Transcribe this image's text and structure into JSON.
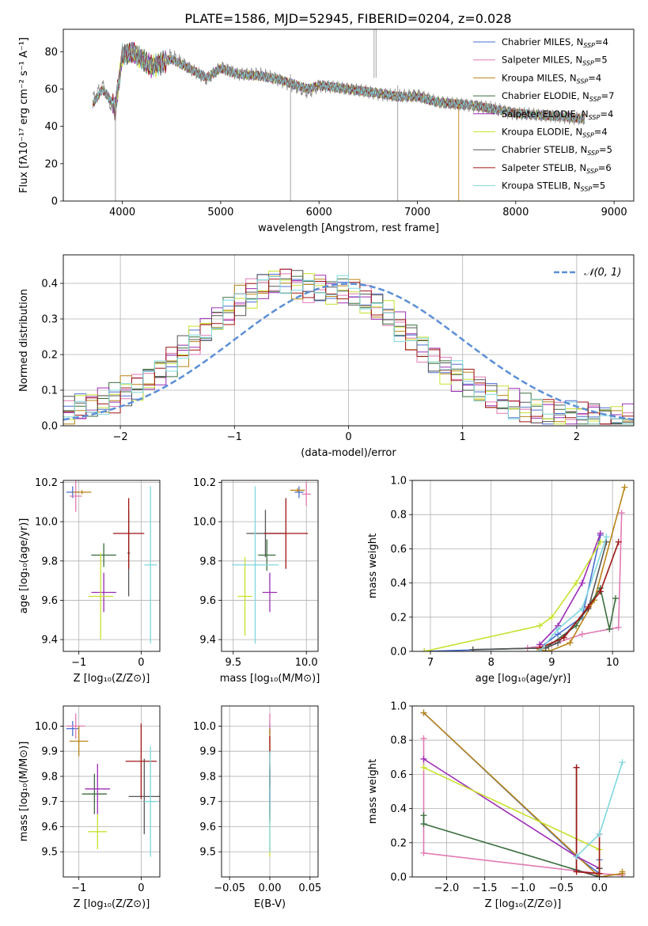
{
  "title": "PLATE=1586, MJD=52945, FIBERID=0204, z=0.028",
  "colors": {
    "Chabrier MILES": "#4a6fd0",
    "Salpeter MILES": "#e07ab4",
    "Kroupa MILES": "#b88416",
    "Chabrier ELODIE": "#3b6e3f",
    "Salpeter ELODIE": "#9c2cb6",
    "Kroupa ELODIE": "#c8e12e",
    "Chabrier STELIB": "#555555",
    "Salpeter STELIB": "#a01515",
    "Kroupa STELIB": "#7fd7de",
    "gauss": "#5b8fd6"
  },
  "chart_data": [
    {
      "type": "line",
      "title": "PLATE=1586, MJD=52945, FIBERID=0204, z=0.028",
      "xlabel": "wavelength [Angstrom, rest frame]",
      "ylabel": "Flux [fλ10⁻¹⁷ erg cm⁻² s⁻¹ A⁻¹]",
      "xlim": [
        3400,
        9200
      ],
      "ylim": [
        0,
        92
      ],
      "xticks": [
        4000,
        5000,
        6000,
        7000,
        8000,
        9000
      ],
      "yticks": [
        0,
        20,
        40,
        60,
        80
      ],
      "legend_position": "top-right",
      "legend": [
        {
          "name": "Chabrier MILES",
          "label": "Chabrier MILES, N",
          "sub": "SSP",
          "tail": "=4"
        },
        {
          "name": "Salpeter MILES",
          "label": "Salpeter MILES, N",
          "sub": "SSP",
          "tail": "=5"
        },
        {
          "name": "Kroupa MILES",
          "label": "Kroupa MILES, N",
          "sub": "SSP",
          "tail": "=4"
        },
        {
          "name": "Chabrier ELODIE",
          "label": "Chabrier ELODIE, N",
          "sub": "SSP",
          "tail": "=7"
        },
        {
          "name": "Salpeter ELODIE",
          "label": "Salpeter ELODIE, N",
          "sub": "SSP",
          "tail": "=4"
        },
        {
          "name": "Kroupa ELODIE",
          "label": "Kroupa ELODIE, N",
          "sub": "SSP",
          "tail": "=4"
        },
        {
          "name": "Chabrier STELIB",
          "label": "Chabrier STELIB, N",
          "sub": "SSP",
          "tail": "=5"
        },
        {
          "name": "Salpeter STELIB",
          "label": "Salpeter STELIB, N",
          "sub": "SSP",
          "tail": "=6"
        },
        {
          "name": "Kroupa STELIB",
          "label": "Kroupa STELIB, N",
          "sub": "SSP",
          "tail": "=5"
        }
      ],
      "data_spectrum": {
        "wavelength": [
          3700,
          3800,
          3930,
          4000,
          4100,
          4300,
          4500,
          4860,
          5000,
          5170,
          5400,
          5600,
          5890,
          6000,
          6300,
          6563,
          6800,
          7000,
          7200,
          7600,
          8000,
          8500,
          8700
        ],
        "flux": [
          55,
          62,
          45,
          80,
          82,
          73,
          78,
          65,
          72,
          68,
          68,
          65,
          58,
          62,
          60,
          58,
          56,
          57,
          53,
          51,
          47,
          45,
          44
        ]
      },
      "model_spectrum": {
        "wavelength": [
          3700,
          3800,
          3930,
          4000,
          4100,
          4300,
          4500,
          4860,
          5000,
          5170,
          5400,
          5600,
          5890,
          6000,
          6300,
          6563,
          6800,
          7000,
          7200,
          7600,
          8000,
          8500,
          8700
        ],
        "flux": [
          52,
          60,
          50,
          78,
          80,
          72,
          76,
          66,
          71,
          68,
          67,
          65,
          60,
          62,
          60,
          58,
          56,
          56,
          53,
          51,
          47,
          45,
          44
        ]
      }
    },
    {
      "type": "bar",
      "title": "",
      "xlabel": "(data-model)/error",
      "ylabel": "Normed distribution",
      "xlim": [
        -2.5,
        2.5
      ],
      "ylim": [
        0,
        0.48
      ],
      "xticks": [
        -2,
        -1,
        0,
        1,
        2
      ],
      "yticks": [
        0.0,
        0.1,
        0.2,
        0.3,
        0.4
      ],
      "legend": [
        {
          "name": "gauss",
          "label": "𝒩(0, 1)"
        }
      ],
      "legend_position": "top-right",
      "bin_width": 0.1,
      "histogram": [
        0.04,
        0.05,
        0.06,
        0.07,
        0.08,
        0.1,
        0.11,
        0.13,
        0.15,
        0.18,
        0.21,
        0.24,
        0.27,
        0.3,
        0.32,
        0.35,
        0.37,
        0.39,
        0.4,
        0.41,
        0.4,
        0.39,
        0.39,
        0.38,
        0.38,
        0.37,
        0.35,
        0.33,
        0.31,
        0.28,
        0.25,
        0.22,
        0.19,
        0.16,
        0.14,
        0.12,
        0.1,
        0.08,
        0.07,
        0.06,
        0.05,
        0.04,
        0.04,
        0.03,
        0.03,
        0.03,
        0.03,
        0.02,
        0.02,
        0.02
      ]
    },
    {
      "type": "scatter",
      "title": "",
      "xlabel": "Z [log₁₀(Z/Z⊙)]",
      "ylabel": "age  [log₁₀(age/yr)]",
      "xlim": [
        -1.25,
        0.3
      ],
      "ylim": [
        9.34,
        10.21
      ],
      "xticks": [
        -1,
        0
      ],
      "yticks": [
        9.4,
        9.6,
        9.8,
        10.0,
        10.2
      ],
      "points": [
        {
          "name": "Chabrier MILES",
          "x": -1.1,
          "y": 10.15,
          "xerr": 0.1,
          "yerr": 0.03
        },
        {
          "name": "Salpeter MILES",
          "x": -1.05,
          "y": 10.13,
          "xerr": 0.1,
          "yerr": 0.08
        },
        {
          "name": "Kroupa MILES",
          "x": -0.95,
          "y": 10.15,
          "xerr": 0.15,
          "yerr": 0.01
        },
        {
          "name": "Chabrier ELODIE",
          "x": -0.6,
          "y": 9.83,
          "xerr": 0.2,
          "yerr": 0.06
        },
        {
          "name": "Salpeter ELODIE",
          "x": -0.6,
          "y": 9.64,
          "xerr": 0.2,
          "yerr": 0.1
        },
        {
          "name": "Kroupa ELODIE",
          "x": -0.65,
          "y": 9.62,
          "xerr": 0.2,
          "yerr": 0.22
        },
        {
          "name": "Chabrier STELIB",
          "x": -0.2,
          "y": 9.84,
          "xerr": 0.02,
          "yerr": 0.22
        },
        {
          "name": "Salpeter STELIB",
          "x": -0.2,
          "y": 9.94,
          "xerr": 0.25,
          "yerr": 0.18
        },
        {
          "name": "Kroupa STELIB",
          "x": 0.15,
          "y": 9.78,
          "xerr": 0.1,
          "yerr": 0.4
        }
      ]
    },
    {
      "type": "scatter",
      "title": "",
      "xlabel": "mass [log₁₀(M/M⊙)]",
      "ylabel": "",
      "xlim": [
        9.42,
        10.08
      ],
      "ylim": [
        9.34,
        10.21
      ],
      "xticks": [
        9.5,
        10.0
      ],
      "yticks": [
        9.4,
        9.6,
        9.8,
        10.0,
        10.2
      ],
      "points": [
        {
          "name": "Chabrier MILES",
          "x": 9.95,
          "y": 10.15,
          "xerr": 0.03,
          "yerr": 0.03
        },
        {
          "name": "Salpeter MILES",
          "x": 10.0,
          "y": 10.14,
          "xerr": 0.03,
          "yerr": 0.06
        },
        {
          "name": "Kroupa MILES",
          "x": 9.94,
          "y": 10.16,
          "xerr": 0.05,
          "yerr": 0.01
        },
        {
          "name": "Chabrier ELODIE",
          "x": 9.73,
          "y": 9.83,
          "xerr": 0.06,
          "yerr": 0.08
        },
        {
          "name": "Salpeter ELODIE",
          "x": 9.75,
          "y": 9.64,
          "xerr": 0.05,
          "yerr": 0.1
        },
        {
          "name": "Kroupa ELODIE",
          "x": 9.58,
          "y": 9.62,
          "xerr": 0.05,
          "yerr": 0.2
        },
        {
          "name": "Chabrier STELIB",
          "x": 9.72,
          "y": 9.94,
          "xerr": 0.13,
          "yerr": 0.12
        },
        {
          "name": "Salpeter STELIB",
          "x": 9.86,
          "y": 9.94,
          "xerr": 0.15,
          "yerr": 0.18
        },
        {
          "name": "Kroupa STELIB",
          "x": 9.65,
          "y": 9.78,
          "xerr": 0.16,
          "yerr": 0.4
        }
      ]
    },
    {
      "type": "line",
      "title": "",
      "xlabel": "age  [log₁₀(age/yr)]",
      "ylabel": "mass weight",
      "xlim": [
        6.7,
        10.35
      ],
      "ylim": [
        0,
        1.0
      ],
      "xticks": [
        7,
        8,
        9,
        10
      ],
      "yticks": [
        0.0,
        0.2,
        0.4,
        0.6,
        0.8,
        1.0
      ],
      "series": [
        {
          "name": "Chabrier MILES",
          "x": [
            6.9,
            8.8,
            9.1,
            9.5,
            9.8
          ],
          "y": [
            0.0,
            0.02,
            0.1,
            0.2,
            0.68
          ]
        },
        {
          "name": "Salpeter MILES",
          "x": [
            8.6,
            9.0,
            9.5,
            10.1,
            10.15
          ],
          "y": [
            0.02,
            0.04,
            0.1,
            0.14,
            0.81
          ]
        },
        {
          "name": "Kroupa MILES",
          "x": [
            8.8,
            8.95,
            9.3,
            9.7,
            10.2
          ],
          "y": [
            0.01,
            0.0,
            0.05,
            0.3,
            0.96
          ]
        },
        {
          "name": "Chabrier ELODIE",
          "x": [
            7.7,
            8.9,
            9.4,
            9.8,
            9.95,
            10.05
          ],
          "y": [
            0.01,
            0.02,
            0.15,
            0.37,
            0.13,
            0.31
          ]
        },
        {
          "name": "Salpeter ELODIE",
          "x": [
            8.8,
            9.1,
            9.5,
            9.8
          ],
          "y": [
            0.04,
            0.15,
            0.4,
            0.69
          ]
        },
        {
          "name": "Kroupa ELODIE",
          "x": [
            6.9,
            8.8,
            9.0,
            9.4,
            9.8
          ],
          "y": [
            0.0,
            0.15,
            0.2,
            0.4,
            0.64
          ]
        },
        {
          "name": "Chabrier STELIB",
          "x": [
            7.7,
            8.9,
            9.1,
            9.6,
            9.9
          ],
          "y": [
            0.01,
            0.02,
            0.05,
            0.25,
            0.64
          ]
        },
        {
          "name": "Salpeter STELIB",
          "x": [
            8.8,
            9.2,
            9.6,
            9.8,
            10.1
          ],
          "y": [
            0.02,
            0.08,
            0.26,
            0.35,
            0.64
          ]
        },
        {
          "name": "Kroupa STELIB",
          "x": [
            8.8,
            9.1,
            9.5,
            9.9
          ],
          "y": [
            0.0,
            0.13,
            0.25,
            0.67
          ]
        }
      ]
    },
    {
      "type": "scatter",
      "title": "",
      "xlabel": "Z [log₁₀(Z/Z⊙)]",
      "ylabel": "mass [log₁₀(M/M⊙)]",
      "xlim": [
        -1.25,
        0.3
      ],
      "ylim": [
        9.4,
        10.08
      ],
      "xticks": [
        -1,
        0
      ],
      "yticks": [
        9.5,
        9.6,
        9.7,
        9.8,
        9.9,
        10.0
      ],
      "points": [
        {
          "name": "Chabrier MILES",
          "x": -1.1,
          "y": 9.99,
          "xerr": 0.1,
          "yerr": 0.03
        },
        {
          "name": "Salpeter MILES",
          "x": -1.05,
          "y": 10.0,
          "xerr": 0.15,
          "yerr": 0.05
        },
        {
          "name": "Kroupa MILES",
          "x": -1.0,
          "y": 9.94,
          "xerr": 0.15,
          "yerr": 0.06
        },
        {
          "name": "Chabrier ELODIE",
          "x": -0.75,
          "y": 9.73,
          "xerr": 0.2,
          "yerr": 0.08
        },
        {
          "name": "Salpeter ELODIE",
          "x": -0.7,
          "y": 9.75,
          "xerr": 0.2,
          "yerr": 0.1
        },
        {
          "name": "Kroupa ELODIE",
          "x": -0.7,
          "y": 9.58,
          "xerr": 0.15,
          "yerr": 0.07
        },
        {
          "name": "Chabrier STELIB",
          "x": 0.05,
          "y": 9.72,
          "xerr": 0.25,
          "yerr": 0.15
        },
        {
          "name": "Salpeter STELIB",
          "x": 0.0,
          "y": 9.86,
          "xerr": 0.25,
          "yerr": 0.15
        },
        {
          "name": "Kroupa STELIB",
          "x": 0.15,
          "y": 9.7,
          "xerr": 0.1,
          "yerr": 0.22
        }
      ]
    },
    {
      "type": "scatter",
      "title": "",
      "xlabel": "E(B-V)",
      "ylabel": "",
      "xlim": [
        -0.06,
        0.06
      ],
      "ylim": [
        9.4,
        10.08
      ],
      "xticks": [
        -0.05,
        0.0,
        0.05
      ],
      "yticks": [
        9.5,
        9.6,
        9.7,
        9.8,
        9.9,
        10.0
      ],
      "points": [
        {
          "name": "Chabrier MILES",
          "x": 0.0,
          "y": 9.99,
          "xerr": 0.0,
          "yerr": 0.02
        },
        {
          "name": "Salpeter MILES",
          "x": 0.0,
          "y": 10.0,
          "xerr": 0.0,
          "yerr": 0.05
        },
        {
          "name": "Kroupa MILES",
          "x": 0.0,
          "y": 9.94,
          "xerr": 0.0,
          "yerr": 0.05
        },
        {
          "name": "Chabrier ELODIE",
          "x": 0.0,
          "y": 9.73,
          "xerr": 0.0,
          "yerr": 0.1
        },
        {
          "name": "Salpeter ELODIE",
          "x": 0.0,
          "y": 9.75,
          "xerr": 0.0,
          "yerr": 0.1
        },
        {
          "name": "Kroupa ELODIE",
          "x": 0.0,
          "y": 9.58,
          "xerr": 0.0,
          "yerr": 0.1
        },
        {
          "name": "Chabrier STELIB",
          "x": 0.0,
          "y": 9.72,
          "xerr": 0.0,
          "yerr": 0.1
        },
        {
          "name": "Salpeter STELIB",
          "x": 0.0,
          "y": 9.86,
          "xerr": 0.0,
          "yerr": 0.1
        },
        {
          "name": "Kroupa STELIB",
          "x": 0.0,
          "y": 9.7,
          "xerr": 0.0,
          "yerr": 0.2
        }
      ]
    },
    {
      "type": "line",
      "title": "",
      "xlabel": "Z [log₁₀(Z/Z⊙)]",
      "ylabel": "mass weight",
      "xlim": [
        -2.45,
        0.45
      ],
      "ylim": [
        0,
        1.0
      ],
      "xticks": [
        -2.0,
        -1.5,
        -1.0,
        -0.5,
        0.0
      ],
      "yticks": [
        0.0,
        0.2,
        0.4,
        0.6,
        0.8,
        1.0
      ],
      "series": [
        {
          "name": "Chabrier MILES",
          "x": [
            -2.3,
            -0.3,
            0.0,
            0.0
          ],
          "y": [
            0.96,
            0.12,
            0.02,
            0.1
          ]
        },
        {
          "name": "Salpeter MILES",
          "x": [
            -2.3,
            -2.3,
            0.0,
            0.3
          ],
          "y": [
            0.81,
            0.14,
            0.02,
            0.01
          ]
        },
        {
          "name": "Kroupa MILES",
          "x": [
            -2.3,
            0.0,
            0.3,
            0.3
          ],
          "y": [
            0.96,
            0.0,
            0.02,
            0.03
          ]
        },
        {
          "name": "Chabrier ELODIE",
          "x": [
            -2.3,
            -2.3,
            0.0,
            0.0
          ],
          "y": [
            0.36,
            0.31,
            0.0,
            0.05
          ]
        },
        {
          "name": "Salpeter ELODIE",
          "x": [
            -2.3,
            -0.3,
            0.0
          ],
          "y": [
            0.69,
            0.12,
            0.05
          ]
        },
        {
          "name": "Kroupa ELODIE",
          "x": [
            -2.3,
            0.0,
            0.0
          ],
          "y": [
            0.64,
            0.16,
            0.0
          ]
        },
        {
          "name": "Chabrier STELIB",
          "x": [
            -0.3,
            -0.3,
            0.0,
            0.0
          ],
          "y": [
            0.64,
            0.04,
            0.0,
            0.05
          ]
        },
        {
          "name": "Salpeter STELIB",
          "x": [
            -0.3,
            -0.3,
            0.0,
            0.0
          ],
          "y": [
            0.64,
            0.03,
            0.02,
            0.25
          ]
        },
        {
          "name": "Kroupa STELIB",
          "x": [
            -0.3,
            0.0,
            0.3
          ],
          "y": [
            0.12,
            0.25,
            0.67
          ]
        }
      ]
    }
  ]
}
